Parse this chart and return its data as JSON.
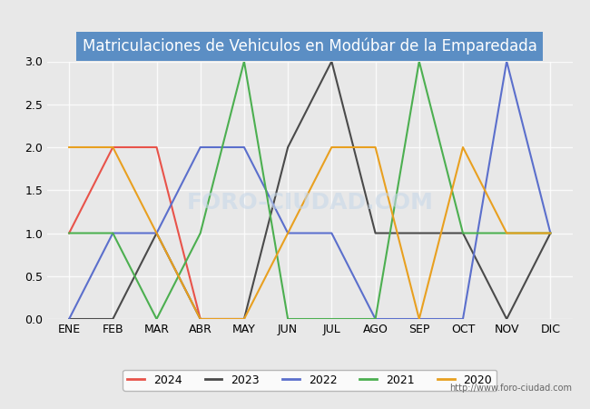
{
  "title": "Matriculaciones de Vehiculos en Modúbar de la Emparedada",
  "months": [
    "ENE",
    "FEB",
    "MAR",
    "ABR",
    "MAY",
    "JUN",
    "JUL",
    "AGO",
    "SEP",
    "OCT",
    "NOV",
    "DIC"
  ],
  "series": {
    "2024": [
      1,
      2,
      2,
      0,
      0,
      null,
      null,
      null,
      null,
      null,
      null,
      null
    ],
    "2023": [
      0,
      0,
      1,
      0,
      0,
      2,
      3,
      1,
      1,
      1,
      0,
      1
    ],
    "2022": [
      0,
      1,
      1,
      2,
      2,
      1,
      1,
      0,
      0,
      0,
      3,
      1
    ],
    "2021": [
      1,
      1,
      0,
      1,
      3,
      0,
      0,
      0,
      3,
      1,
      1,
      1
    ],
    "2020": [
      2,
      2,
      1,
      0,
      0,
      1,
      2,
      2,
      0,
      2,
      1,
      1
    ]
  },
  "colors": {
    "2024": "#e8534a",
    "2023": "#4a4a4a",
    "2022": "#5b6fcc",
    "2021": "#4caf50",
    "2020": "#e8a020"
  },
  "ylim": [
    0,
    3.0
  ],
  "yticks": [
    0.0,
    0.5,
    1.0,
    1.5,
    2.0,
    2.5,
    3.0
  ],
  "background_color": "#e8e8e8",
  "plot_bg_color": "#e8e8e8",
  "title_bg_color": "#5b8ec4",
  "title_text_color": "#ffffff",
  "watermark": "FORO-CIUDAD.COM",
  "url": "http://www.foro-ciudad.com",
  "legend_years": [
    "2024",
    "2023",
    "2022",
    "2021",
    "2020"
  ]
}
